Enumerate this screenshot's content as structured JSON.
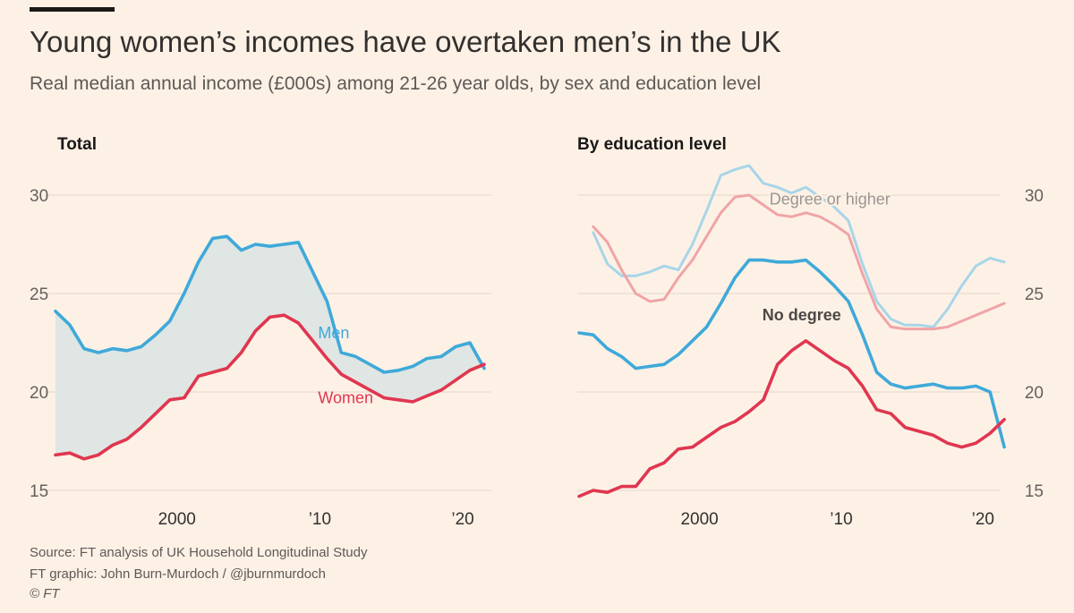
{
  "title": "Young women’s incomes have overtaken men’s in the UK",
  "subtitle": "Real median annual income (£000s) among 21-26 year olds, by sex and education level",
  "footer": {
    "source": "Source: FT analysis of UK Household Longitudinal Study",
    "graphic": "FT graphic: John Burn-Murdoch / @jburnmurdoch",
    "copyright": "© FT"
  },
  "colors": {
    "background": "#fdf1e6",
    "men": "#3fa9d9",
    "women": "#e0364f",
    "men_light": "#a8d5e8",
    "women_light": "#f0a4a6",
    "fill": "#dbe4e3",
    "grid": "#e8dcd0"
  },
  "chart_data": [
    {
      "type": "area",
      "title": "Total",
      "xlabel": "",
      "ylabel": "",
      "xlim": [
        1991.5,
        2022
      ],
      "ylim": [
        15,
        31
      ],
      "yticks": [
        15,
        20,
        25,
        30
      ],
      "xticks": [
        {
          "value": 2000,
          "label": "2000"
        },
        {
          "value": 2010,
          "label": "’10"
        },
        {
          "value": 2020,
          "label": "’20"
        }
      ],
      "grid": true,
      "series": [
        {
          "name": "Men",
          "x": [
            1991.5,
            1992.5,
            1993.5,
            1994.5,
            1995.5,
            1996.5,
            1997.5,
            1998.5,
            1999.5,
            2000.5,
            2001.5,
            2002.5,
            2003.5,
            2004.5,
            2005.5,
            2006.5,
            2007.5,
            2008.5,
            2009.5,
            2010.5,
            2011.5,
            2012.5,
            2013.5,
            2014.5,
            2015.5,
            2016.5,
            2017.5,
            2018.5,
            2019.5,
            2020.5,
            2021.5
          ],
          "values": [
            24.1,
            23.4,
            22.2,
            22.0,
            22.2,
            22.1,
            22.3,
            22.9,
            23.6,
            25.0,
            26.6,
            27.8,
            27.9,
            27.2,
            27.5,
            27.4,
            27.5,
            27.6,
            26.1,
            24.6,
            22.0,
            21.8,
            21.4,
            21.0,
            21.1,
            21.3,
            21.7,
            21.8,
            22.3,
            22.5,
            21.2
          ]
        },
        {
          "name": "Women",
          "x": [
            1991.5,
            1992.5,
            1993.5,
            1994.5,
            1995.5,
            1996.5,
            1997.5,
            1998.5,
            1999.5,
            2000.5,
            2001.5,
            2002.5,
            2003.5,
            2004.5,
            2005.5,
            2006.5,
            2007.5,
            2008.5,
            2009.5,
            2010.5,
            2011.5,
            2012.5,
            2013.5,
            2014.5,
            2015.5,
            2016.5,
            2017.5,
            2018.5,
            2019.5,
            2020.5,
            2021.5
          ],
          "values": [
            16.8,
            16.9,
            16.6,
            16.8,
            17.3,
            17.6,
            18.2,
            18.9,
            19.6,
            19.7,
            20.8,
            21.0,
            21.2,
            22.0,
            23.1,
            23.8,
            23.9,
            23.5,
            22.6,
            21.7,
            20.9,
            20.5,
            20.1,
            19.7,
            19.6,
            19.5,
            19.8,
            20.1,
            20.6,
            21.1,
            21.4
          ]
        }
      ],
      "annotations": [
        {
          "text": "Men",
          "x": 2011.5,
          "y": 23.0
        },
        {
          "text": "Women",
          "x": 2011.5,
          "y": 19.7
        }
      ]
    },
    {
      "type": "line",
      "title": "By education level",
      "xlabel": "",
      "ylabel": "",
      "xlim": [
        1991.5,
        2022
      ],
      "ylim": [
        15,
        31
      ],
      "yticks": [
        15,
        20,
        25,
        30
      ],
      "xticks": [
        {
          "value": 2000,
          "label": "2000"
        },
        {
          "value": 2010,
          "label": "’10"
        },
        {
          "value": 2020,
          "label": "’20"
        }
      ],
      "grid": true,
      "series": [
        {
          "name": "Men, degree or higher",
          "group": "Degree or higher",
          "x": [
            1992.5,
            1993.5,
            1994.5,
            1995.5,
            1996.5,
            1997.5,
            1998.5,
            1999.5,
            2000.5,
            2001.5,
            2002.5,
            2003.5,
            2004.5,
            2005.5,
            2006.5,
            2007.5,
            2008.5,
            2009.5,
            2010.5,
            2011.5,
            2012.5,
            2013.5,
            2014.5,
            2015.5,
            2016.5,
            2017.5,
            2018.5,
            2019.5,
            2020.5,
            2021.5
          ],
          "values": [
            28.1,
            26.5,
            25.9,
            25.9,
            26.1,
            26.4,
            26.2,
            27.5,
            29.2,
            31.0,
            31.3,
            31.5,
            30.6,
            30.4,
            30.1,
            30.4,
            29.9,
            29.4,
            28.7,
            26.5,
            24.6,
            23.7,
            23.4,
            23.4,
            23.3,
            24.2,
            25.4,
            26.4,
            26.8,
            26.6
          ]
        },
        {
          "name": "Women, degree or higher",
          "group": "Degree or higher",
          "x": [
            1992.5,
            1993.5,
            1994.5,
            1995.5,
            1996.5,
            1997.5,
            1998.5,
            1999.5,
            2000.5,
            2001.5,
            2002.5,
            2003.5,
            2004.5,
            2005.5,
            2006.5,
            2007.5,
            2008.5,
            2009.5,
            2010.5,
            2011.5,
            2012.5,
            2013.5,
            2014.5,
            2015.5,
            2016.5,
            2017.5,
            2018.5,
            2019.5,
            2020.5,
            2021.5
          ],
          "values": [
            28.4,
            27.6,
            26.2,
            25.0,
            24.6,
            24.7,
            25.8,
            26.7,
            27.9,
            29.1,
            29.9,
            30.0,
            29.5,
            29.0,
            28.9,
            29.1,
            28.9,
            28.5,
            28.0,
            26.0,
            24.2,
            23.3,
            23.2,
            23.2,
            23.2,
            23.3,
            23.6,
            23.9,
            24.2,
            24.5
          ]
        },
        {
          "name": "Men, no degree",
          "group": "No degree",
          "x": [
            1991.5,
            1992.5,
            1993.5,
            1994.5,
            1995.5,
            1996.5,
            1997.5,
            1998.5,
            1999.5,
            2000.5,
            2001.5,
            2002.5,
            2003.5,
            2004.5,
            2005.5,
            2006.5,
            2007.5,
            2008.5,
            2009.5,
            2010.5,
            2011.5,
            2012.5,
            2013.5,
            2014.5,
            2015.5,
            2016.5,
            2017.5,
            2018.5,
            2019.5,
            2020.5,
            2021.5
          ],
          "values": [
            23.0,
            22.9,
            22.2,
            21.8,
            21.2,
            21.3,
            21.4,
            21.9,
            22.6,
            23.3,
            24.5,
            25.8,
            26.7,
            26.7,
            26.6,
            26.6,
            26.7,
            26.1,
            25.4,
            24.6,
            22.9,
            21.0,
            20.4,
            20.2,
            20.3,
            20.4,
            20.2,
            20.2,
            20.3,
            20.0,
            17.2
          ]
        },
        {
          "name": "Women, no degree",
          "group": "No degree",
          "x": [
            1991.5,
            1992.5,
            1993.5,
            1994.5,
            1995.5,
            1996.5,
            1997.5,
            1998.5,
            1999.5,
            2000.5,
            2001.5,
            2002.5,
            2003.5,
            2004.5,
            2005.5,
            2006.5,
            2007.5,
            2008.5,
            2009.5,
            2010.5,
            2011.5,
            2012.5,
            2013.5,
            2014.5,
            2015.5,
            2016.5,
            2017.5,
            2018.5,
            2019.5,
            2020.5,
            2021.5
          ],
          "values": [
            14.7,
            15.0,
            14.9,
            15.2,
            15.2,
            16.1,
            16.4,
            17.1,
            17.2,
            17.7,
            18.2,
            18.5,
            19.0,
            19.6,
            21.4,
            22.1,
            22.6,
            22.1,
            21.6,
            21.2,
            20.3,
            19.1,
            18.9,
            18.2,
            18.0,
            17.8,
            17.4,
            17.2,
            17.4,
            17.9,
            18.6
          ]
        }
      ],
      "annotations": [
        {
          "text": "Degree or higher",
          "x": 2011.5,
          "y": 29.8
        },
        {
          "text": "No degree",
          "x": 2011.5,
          "y": 23.9
        }
      ]
    }
  ]
}
